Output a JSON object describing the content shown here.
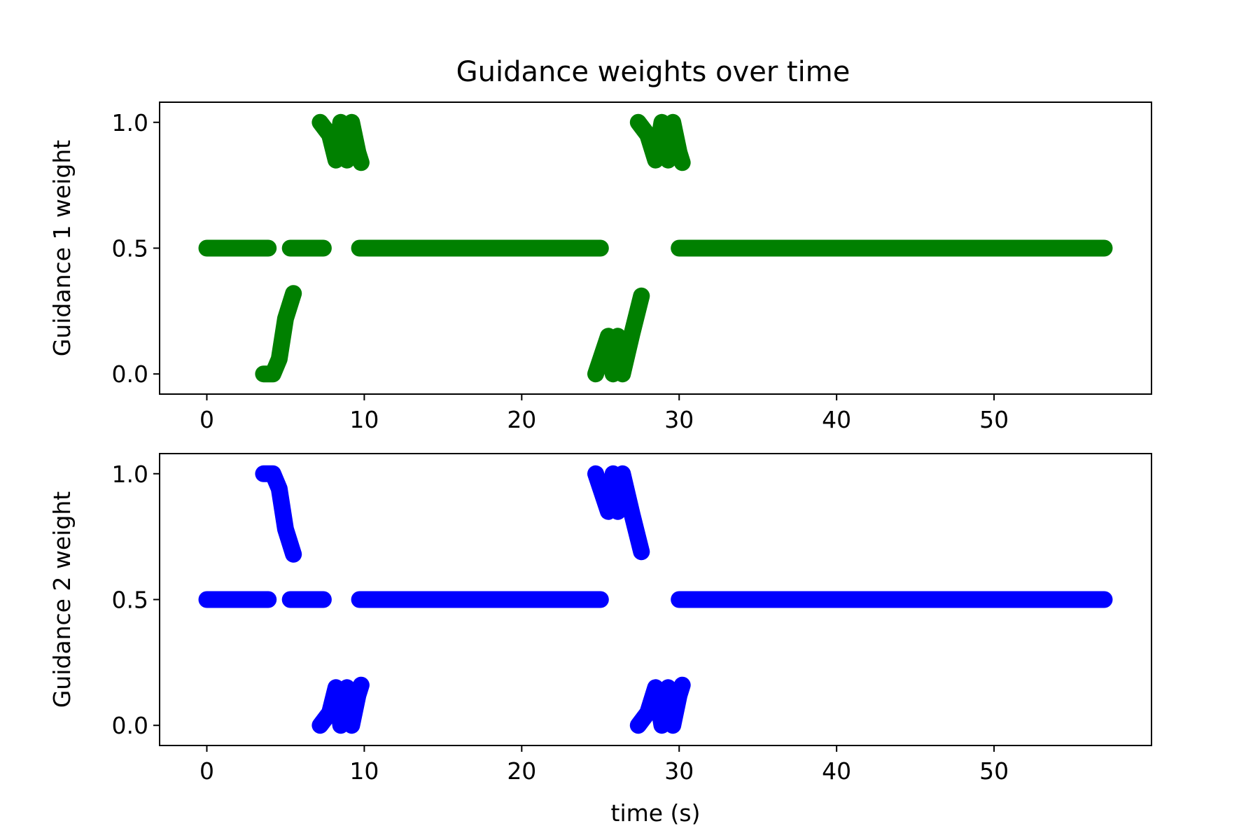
{
  "figure": {
    "title": "Guidance weights over time"
  },
  "chart_data": [
    {
      "type": "scatter",
      "title": "Guidance weights over time",
      "xlabel": "",
      "ylabel": "Guidance 1 weight",
      "xlim": [
        -3,
        60
      ],
      "ylim": [
        -0.08,
        1.08
      ],
      "xticks": [
        0,
        10,
        20,
        30,
        40,
        50
      ],
      "xtick_labels": [
        "0",
        "10",
        "20",
        "30",
        "40",
        "50"
      ],
      "yticks": [
        0.0,
        0.5,
        1.0
      ],
      "ytick_labels": [
        "0.0",
        "0.5",
        "1.0"
      ],
      "grid": false,
      "color": "#008000",
      "segments": [
        [
          [
            0.0,
            0.5
          ],
          [
            3.9,
            0.5
          ]
        ],
        [
          [
            5.3,
            0.5
          ],
          [
            7.4,
            0.5
          ]
        ],
        [
          [
            9.7,
            0.5
          ],
          [
            25.0,
            0.5
          ]
        ],
        [
          [
            30.0,
            0.5
          ],
          [
            57.0,
            0.5
          ]
        ],
        [
          [
            3.6,
            0.0
          ],
          [
            4.2,
            0.0
          ],
          [
            4.6,
            0.06
          ],
          [
            5.0,
            0.22
          ],
          [
            5.5,
            0.32
          ]
        ],
        [
          [
            7.2,
            1.0
          ],
          [
            7.8,
            0.95
          ],
          [
            8.2,
            0.85
          ],
          [
            8.5,
            1.0
          ],
          [
            8.9,
            0.85
          ],
          [
            9.2,
            1.0
          ],
          [
            9.6,
            0.88
          ],
          [
            9.8,
            0.84
          ]
        ],
        [
          [
            24.7,
            0.0
          ],
          [
            25.5,
            0.15
          ],
          [
            25.8,
            0.0
          ],
          [
            26.1,
            0.15
          ],
          [
            26.4,
            0.0
          ],
          [
            27.0,
            0.16
          ],
          [
            27.6,
            0.31
          ]
        ],
        [
          [
            27.4,
            1.0
          ],
          [
            28.0,
            0.95
          ],
          [
            28.5,
            0.85
          ],
          [
            28.9,
            1.0
          ],
          [
            29.3,
            0.85
          ],
          [
            29.6,
            1.0
          ],
          [
            30.0,
            0.88
          ],
          [
            30.2,
            0.84
          ]
        ]
      ]
    },
    {
      "type": "scatter",
      "title": "",
      "xlabel": "time (s)",
      "ylabel": "Guidance 2 weight",
      "xlim": [
        -3,
        60
      ],
      "ylim": [
        -0.08,
        1.08
      ],
      "xticks": [
        0,
        10,
        20,
        30,
        40,
        50
      ],
      "xtick_labels": [
        "0",
        "10",
        "20",
        "30",
        "40",
        "50"
      ],
      "yticks": [
        0.0,
        0.5,
        1.0
      ],
      "ytick_labels": [
        "0.0",
        "0.5",
        "1.0"
      ],
      "grid": false,
      "color": "#0000ff",
      "segments": [
        [
          [
            0.0,
            0.5
          ],
          [
            3.9,
            0.5
          ]
        ],
        [
          [
            5.3,
            0.5
          ],
          [
            7.4,
            0.5
          ]
        ],
        [
          [
            9.7,
            0.5
          ],
          [
            25.0,
            0.5
          ]
        ],
        [
          [
            30.0,
            0.5
          ],
          [
            57.0,
            0.5
          ]
        ],
        [
          [
            3.6,
            1.0
          ],
          [
            4.2,
            1.0
          ],
          [
            4.6,
            0.94
          ],
          [
            5.0,
            0.78
          ],
          [
            5.5,
            0.68
          ]
        ],
        [
          [
            7.2,
            0.0
          ],
          [
            7.8,
            0.05
          ],
          [
            8.2,
            0.15
          ],
          [
            8.5,
            0.0
          ],
          [
            8.9,
            0.15
          ],
          [
            9.2,
            0.0
          ],
          [
            9.6,
            0.12
          ],
          [
            9.8,
            0.16
          ]
        ],
        [
          [
            24.7,
            1.0
          ],
          [
            25.5,
            0.85
          ],
          [
            25.8,
            1.0
          ],
          [
            26.1,
            0.85
          ],
          [
            26.4,
            1.0
          ],
          [
            27.0,
            0.84
          ],
          [
            27.6,
            0.69
          ]
        ],
        [
          [
            27.4,
            0.0
          ],
          [
            28.0,
            0.05
          ],
          [
            28.5,
            0.15
          ],
          [
            28.9,
            0.0
          ],
          [
            29.3,
            0.15
          ],
          [
            29.6,
            0.0
          ],
          [
            30.0,
            0.12
          ],
          [
            30.2,
            0.16
          ]
        ]
      ]
    }
  ]
}
